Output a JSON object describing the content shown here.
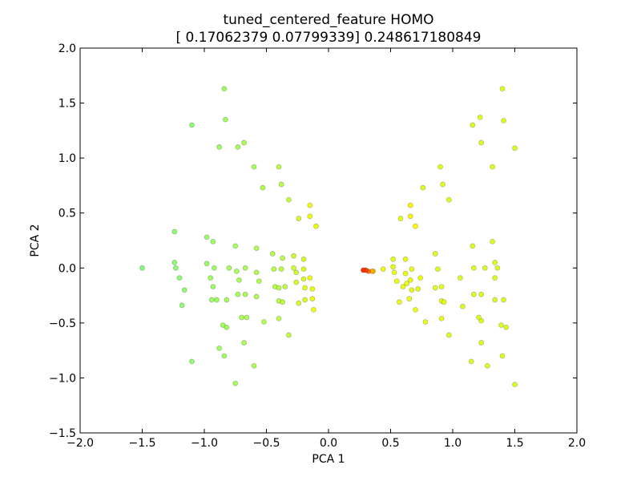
{
  "chart_data": {
    "type": "scatter",
    "title": "tuned_centered_feature HOMO",
    "subtitle": "[ 0.17062379  0.07799339] 0.248617180849",
    "xlabel": "PCA 1",
    "ylabel": "PCA 2",
    "xlim": [
      -2.0,
      2.0
    ],
    "ylim": [
      -1.5,
      2.0
    ],
    "xticks": [
      -2.0,
      -1.5,
      -1.0,
      -0.5,
      0.0,
      0.5,
      1.0,
      1.5,
      2.0
    ],
    "yticks": [
      -1.5,
      -1.0,
      -0.5,
      0.0,
      0.5,
      1.0,
      1.5,
      2.0
    ],
    "xtick_labels": [
      "−2.0",
      "−1.5",
      "−1.0",
      "−0.5",
      "0.0",
      "0.5",
      "1.0",
      "1.5",
      "2.0"
    ],
    "ytick_labels": [
      "−1.5",
      "−1.0",
      "−0.5",
      "0.0",
      "0.5",
      "1.0",
      "1.5",
      "2.0"
    ],
    "grid": false,
    "colormap": [
      "#80ff80",
      "#ffff00",
      "#ff3000"
    ],
    "series": [
      {
        "points": [
          {
            "x": -1.5,
            "y": 0.0,
            "c": 0.0
          },
          {
            "x": -1.24,
            "y": 0.33,
            "c": 0.05
          },
          {
            "x": -1.24,
            "y": 0.05,
            "c": 0.05
          },
          {
            "x": -1.23,
            "y": 0.0,
            "c": 0.05
          },
          {
            "x": -1.2,
            "y": -0.09,
            "c": 0.06
          },
          {
            "x": -1.16,
            "y": -0.2,
            "c": 0.07
          },
          {
            "x": -1.18,
            "y": -0.34,
            "c": 0.06
          },
          {
            "x": -1.1,
            "y": 1.3,
            "c": 0.05
          },
          {
            "x": -1.1,
            "y": -0.85,
            "c": 0.08
          },
          {
            "x": -0.98,
            "y": 0.28,
            "c": 0.1
          },
          {
            "x": -0.98,
            "y": 0.04,
            "c": 0.1
          },
          {
            "x": -0.95,
            "y": -0.09,
            "c": 0.11
          },
          {
            "x": -0.94,
            "y": -0.29,
            "c": 0.11
          },
          {
            "x": -0.93,
            "y": 0.24,
            "c": 0.11
          },
          {
            "x": -0.93,
            "y": -0.17,
            "c": 0.11
          },
          {
            "x": -0.92,
            "y": 0.0,
            "c": 0.11
          },
          {
            "x": -0.9,
            "y": -0.29,
            "c": 0.12
          },
          {
            "x": -0.88,
            "y": 1.1,
            "c": 0.12
          },
          {
            "x": -0.88,
            "y": -0.73,
            "c": 0.12
          },
          {
            "x": -0.85,
            "y": -0.52,
            "c": 0.13
          },
          {
            "x": -0.84,
            "y": 1.63,
            "c": 0.12
          },
          {
            "x": -0.84,
            "y": -0.8,
            "c": 0.13
          },
          {
            "x": -0.83,
            "y": 1.35,
            "c": 0.13
          },
          {
            "x": -0.82,
            "y": -0.29,
            "c": 0.13
          },
          {
            "x": -0.8,
            "y": 0.0,
            "c": 0.14
          },
          {
            "x": -0.82,
            "y": -0.54,
            "c": 0.13
          },
          {
            "x": -0.75,
            "y": 0.2,
            "c": 0.15
          },
          {
            "x": -0.74,
            "y": -0.03,
            "c": 0.15
          },
          {
            "x": -0.75,
            "y": -1.05,
            "c": 0.15
          },
          {
            "x": -0.73,
            "y": 1.1,
            "c": 0.15
          },
          {
            "x": -0.73,
            "y": -0.24,
            "c": 0.15
          },
          {
            "x": -0.72,
            "y": -0.11,
            "c": 0.16
          },
          {
            "x": -0.7,
            "y": -0.45,
            "c": 0.16
          },
          {
            "x": -0.68,
            "y": 1.14,
            "c": 0.17
          },
          {
            "x": -0.68,
            "y": -0.68,
            "c": 0.17
          },
          {
            "x": -0.67,
            "y": 0.0,
            "c": 0.17
          },
          {
            "x": -0.67,
            "y": -0.24,
            "c": 0.17
          },
          {
            "x": -0.66,
            "y": -0.45,
            "c": 0.17
          },
          {
            "x": -0.6,
            "y": 0.92,
            "c": 0.18
          },
          {
            "x": -0.6,
            "y": -0.89,
            "c": 0.19
          },
          {
            "x": -0.58,
            "y": 0.18,
            "c": 0.19
          },
          {
            "x": -0.58,
            "y": -0.04,
            "c": 0.19
          },
          {
            "x": -0.58,
            "y": -0.26,
            "c": 0.19
          },
          {
            "x": -0.56,
            "y": -0.12,
            "c": 0.19
          },
          {
            "x": -0.53,
            "y": 0.73,
            "c": 0.2
          },
          {
            "x": -0.52,
            "y": -0.49,
            "c": 0.2
          },
          {
            "x": -0.45,
            "y": 0.13,
            "c": 0.22
          },
          {
            "x": -0.44,
            "y": -0.01,
            "c": 0.22
          },
          {
            "x": -0.43,
            "y": -0.17,
            "c": 0.22
          },
          {
            "x": -0.4,
            "y": 0.92,
            "c": 0.23
          },
          {
            "x": -0.4,
            "y": -0.18,
            "c": 0.23
          },
          {
            "x": -0.4,
            "y": -0.3,
            "c": 0.23
          },
          {
            "x": -0.4,
            "y": -0.46,
            "c": 0.23
          },
          {
            "x": -0.38,
            "y": 0.76,
            "c": 0.23
          },
          {
            "x": -0.38,
            "y": -0.01,
            "c": 0.23
          },
          {
            "x": -0.37,
            "y": 0.09,
            "c": 0.24
          },
          {
            "x": -0.37,
            "y": -0.31,
            "c": 0.24
          },
          {
            "x": -0.35,
            "y": -0.17,
            "c": 0.24
          },
          {
            "x": -0.32,
            "y": 0.62,
            "c": 0.26
          },
          {
            "x": -0.32,
            "y": -0.61,
            "c": 0.26
          },
          {
            "x": -0.28,
            "y": 0.11,
            "c": 0.3
          },
          {
            "x": -0.28,
            "y": 0.0,
            "c": 0.3
          },
          {
            "x": -0.26,
            "y": -0.04,
            "c": 0.32
          },
          {
            "x": -0.26,
            "y": -0.13,
            "c": 0.32
          },
          {
            "x": -0.24,
            "y": 0.45,
            "c": 0.33
          },
          {
            "x": -0.24,
            "y": -0.32,
            "c": 0.33
          },
          {
            "x": -0.2,
            "y": 0.08,
            "c": 0.36
          },
          {
            "x": -0.2,
            "y": -0.01,
            "c": 0.36
          },
          {
            "x": -0.2,
            "y": -0.1,
            "c": 0.36
          },
          {
            "x": -0.19,
            "y": -0.18,
            "c": 0.37
          },
          {
            "x": -0.19,
            "y": -0.29,
            "c": 0.37
          },
          {
            "x": -0.15,
            "y": 0.57,
            "c": 0.45
          },
          {
            "x": -0.15,
            "y": 0.47,
            "c": 0.45
          },
          {
            "x": -0.15,
            "y": -0.09,
            "c": 0.45
          },
          {
            "x": -0.13,
            "y": -0.19,
            "c": 0.45
          },
          {
            "x": -0.13,
            "y": -0.28,
            "c": 0.45
          },
          {
            "x": -0.12,
            "y": -0.38,
            "c": 0.44
          },
          {
            "x": -0.1,
            "y": 0.38,
            "c": 0.44
          },
          {
            "x": 0.28,
            "y": -0.02,
            "c": 1.0
          },
          {
            "x": 0.3,
            "y": -0.02,
            "c": 0.95
          },
          {
            "x": 0.32,
            "y": -0.03,
            "c": 0.85
          },
          {
            "x": 0.35,
            "y": -0.03,
            "c": 0.7
          },
          {
            "x": 0.36,
            "y": -0.03,
            "c": 0.6
          },
          {
            "x": 0.44,
            "y": -0.01,
            "c": 0.45
          },
          {
            "x": 0.52,
            "y": 0.08,
            "c": 0.42
          },
          {
            "x": 0.52,
            "y": 0.01,
            "c": 0.42
          },
          {
            "x": 0.53,
            "y": -0.04,
            "c": 0.42
          },
          {
            "x": 0.55,
            "y": -0.12,
            "c": 0.42
          },
          {
            "x": 0.57,
            "y": -0.31,
            "c": 0.42
          },
          {
            "x": 0.58,
            "y": 0.45,
            "c": 0.42
          },
          {
            "x": 0.6,
            "y": -0.17,
            "c": 0.42
          },
          {
            "x": 0.62,
            "y": 0.08,
            "c": 0.42
          },
          {
            "x": 0.62,
            "y": -0.05,
            "c": 0.42
          },
          {
            "x": 0.63,
            "y": -0.14,
            "c": 0.42
          },
          {
            "x": 0.65,
            "y": -0.28,
            "c": 0.42
          },
          {
            "x": 0.66,
            "y": 0.57,
            "c": 0.52
          },
          {
            "x": 0.66,
            "y": 0.47,
            "c": 0.52
          },
          {
            "x": 0.66,
            "y": -0.11,
            "c": 0.42
          },
          {
            "x": 0.67,
            "y": -0.2,
            "c": 0.42
          },
          {
            "x": 0.67,
            "y": -0.01,
            "c": 0.42
          },
          {
            "x": 0.7,
            "y": 0.38,
            "c": 0.5
          },
          {
            "x": 0.7,
            "y": -0.38,
            "c": 0.42
          },
          {
            "x": 0.72,
            "y": -0.19,
            "c": 0.42
          },
          {
            "x": 0.74,
            "y": -0.09,
            "c": 0.42
          },
          {
            "x": 0.76,
            "y": 0.73,
            "c": 0.4
          },
          {
            "x": 0.78,
            "y": -0.49,
            "c": 0.4
          },
          {
            "x": 0.86,
            "y": 0.13,
            "c": 0.4
          },
          {
            "x": 0.86,
            "y": -0.18,
            "c": 0.4
          },
          {
            "x": 0.88,
            "y": -0.01,
            "c": 0.4
          },
          {
            "x": 0.9,
            "y": 0.92,
            "c": 0.4
          },
          {
            "x": 0.91,
            "y": -0.17,
            "c": 0.4
          },
          {
            "x": 0.91,
            "y": -0.3,
            "c": 0.4
          },
          {
            "x": 0.91,
            "y": -0.46,
            "c": 0.4
          },
          {
            "x": 0.92,
            "y": 0.76,
            "c": 0.4
          },
          {
            "x": 0.93,
            "y": -0.31,
            "c": 0.4
          },
          {
            "x": 0.97,
            "y": 0.62,
            "c": 0.4
          },
          {
            "x": 0.97,
            "y": -0.61,
            "c": 0.4
          },
          {
            "x": 1.06,
            "y": -0.09,
            "c": 0.38
          },
          {
            "x": 1.08,
            "y": -0.35,
            "c": 0.38
          },
          {
            "x": 1.15,
            "y": -0.85,
            "c": 0.38
          },
          {
            "x": 1.16,
            "y": 1.3,
            "c": 0.38
          },
          {
            "x": 1.16,
            "y": 0.2,
            "c": 0.38
          },
          {
            "x": 1.17,
            "y": 0.0,
            "c": 0.38
          },
          {
            "x": 1.17,
            "y": -0.24,
            "c": 0.38
          },
          {
            "x": 1.21,
            "y": -0.45,
            "c": 0.38
          },
          {
            "x": 1.22,
            "y": 1.37,
            "c": 0.38
          },
          {
            "x": 1.23,
            "y": 1.14,
            "c": 0.38
          },
          {
            "x": 1.23,
            "y": -0.68,
            "c": 0.38
          },
          {
            "x": 1.23,
            "y": -0.24,
            "c": 0.38
          },
          {
            "x": 1.23,
            "y": -0.48,
            "c": 0.38
          },
          {
            "x": 1.26,
            "y": 0.0,
            "c": 0.38
          },
          {
            "x": 1.28,
            "y": -0.89,
            "c": 0.38
          },
          {
            "x": 1.32,
            "y": 0.92,
            "c": 0.38
          },
          {
            "x": 1.32,
            "y": 0.24,
            "c": 0.38
          },
          {
            "x": 1.34,
            "y": 0.05,
            "c": 0.38
          },
          {
            "x": 1.34,
            "y": -0.29,
            "c": 0.38
          },
          {
            "x": 1.34,
            "y": -0.09,
            "c": 0.38
          },
          {
            "x": 1.36,
            "y": 0.0,
            "c": 0.38
          },
          {
            "x": 1.39,
            "y": -0.52,
            "c": 0.38
          },
          {
            "x": 1.4,
            "y": 1.63,
            "c": 0.38
          },
          {
            "x": 1.4,
            "y": -0.8,
            "c": 0.38
          },
          {
            "x": 1.41,
            "y": 1.34,
            "c": 0.38
          },
          {
            "x": 1.41,
            "y": -0.29,
            "c": 0.38
          },
          {
            "x": 1.43,
            "y": -0.54,
            "c": 0.38
          },
          {
            "x": 1.5,
            "y": 1.09,
            "c": 0.38
          },
          {
            "x": 1.5,
            "y": -1.06,
            "c": 0.38
          }
        ]
      }
    ]
  }
}
